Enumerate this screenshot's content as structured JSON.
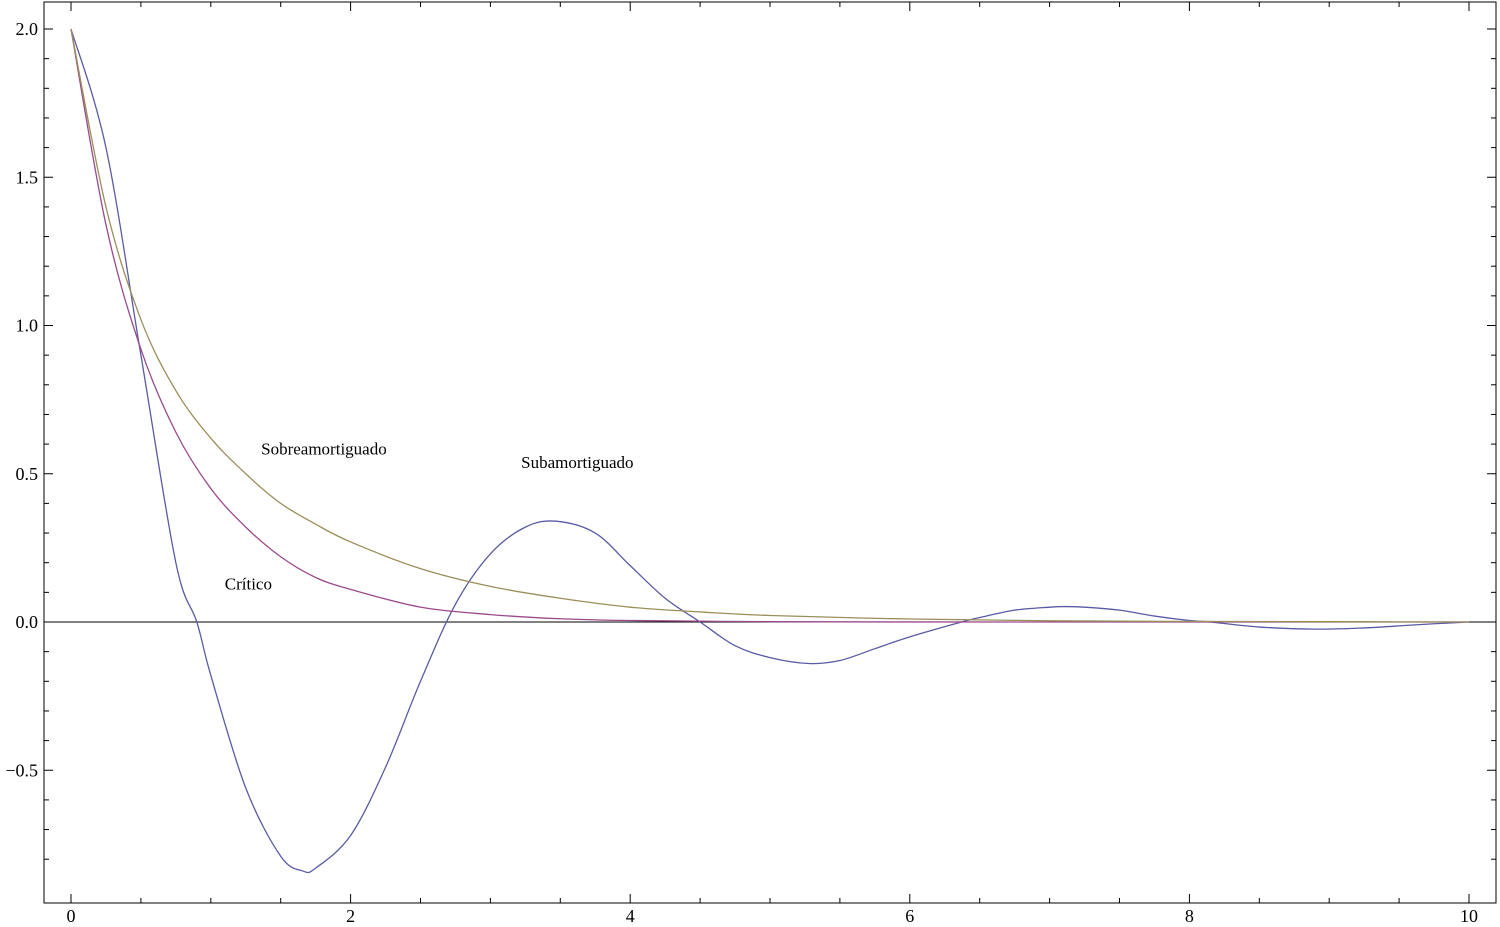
{
  "chart_data": {
    "type": "line",
    "title": "",
    "xlabel": "",
    "ylabel": "",
    "xlim": [
      0,
      10
    ],
    "ylim": [
      -0.9,
      2.1
    ],
    "grid": false,
    "x_ticks": [
      {
        "value": 0,
        "label": "0"
      },
      {
        "value": 2,
        "label": "2"
      },
      {
        "value": 4,
        "label": "4"
      },
      {
        "value": 6,
        "label": "6"
      },
      {
        "value": 8,
        "label": "8"
      },
      {
        "value": 10,
        "label": "10"
      }
    ],
    "y_ticks": [
      {
        "value": -0.5,
        "label": "−0.5"
      },
      {
        "value": 0.0,
        "label": "0.0"
      },
      {
        "value": 0.5,
        "label": "0.5"
      },
      {
        "value": 1.0,
        "label": "1.0"
      },
      {
        "value": 1.5,
        "label": "1.5"
      },
      {
        "value": 2.0,
        "label": "2.0"
      }
    ],
    "series": [
      {
        "color": "#5a5aa5",
        "x": [
          0,
          0.25,
          0.5,
          0.75,
          0.9,
          1.0,
          1.25,
          1.5,
          1.66,
          1.75,
          2.0,
          2.25,
          2.5,
          2.75,
          3.0,
          3.25,
          3.47,
          3.75,
          4.0,
          4.25,
          4.5,
          4.75,
          5.0,
          5.28,
          5.5,
          5.75,
          6.0,
          6.37,
          6.5,
          6.75,
          7.0,
          7.1,
          7.25,
          7.5,
          7.75,
          8.0,
          8.15,
          8.5,
          8.9,
          9.25,
          9.5,
          9.75,
          10.0
        ],
        "y": [
          2.0,
          1.6,
          0.9,
          0.2,
          0.0,
          -0.18,
          -0.56,
          -0.79,
          -0.84,
          -0.83,
          -0.72,
          -0.49,
          -0.2,
          0.06,
          0.23,
          0.32,
          0.34,
          0.3,
          0.19,
          0.08,
          0.0,
          -0.08,
          -0.12,
          -0.14,
          -0.13,
          -0.09,
          -0.05,
          0.0,
          0.015,
          0.04,
          0.05,
          0.052,
          0.05,
          0.04,
          0.02,
          0.005,
          0.0,
          -0.017,
          -0.024,
          -0.02,
          -0.013,
          -0.006,
          0.0
        ]
      },
      {
        "color": "#9a4a8a",
        "x": [
          0,
          0.25,
          0.5,
          0.75,
          1.0,
          1.25,
          1.5,
          1.75,
          2.0,
          2.5,
          3.0,
          3.5,
          4.0,
          5.0,
          6.0,
          7.0,
          8.0,
          9.0,
          10.0
        ],
        "y": [
          2.0,
          1.34,
          0.92,
          0.64,
          0.45,
          0.32,
          0.22,
          0.15,
          0.11,
          0.05,
          0.025,
          0.011,
          0.005,
          0.001,
          0.0002,
          0.0,
          0.0,
          0.0,
          0.0
        ]
      },
      {
        "color": "#9a8f5a",
        "x": [
          0,
          0.25,
          0.5,
          0.75,
          1.0,
          1.25,
          1.5,
          1.75,
          2.0,
          2.5,
          3.0,
          3.5,
          4.0,
          4.5,
          5.0,
          6.0,
          7.0,
          8.0,
          9.0,
          10.0
        ],
        "y": [
          2.0,
          1.4,
          1.02,
          0.78,
          0.62,
          0.5,
          0.4,
          0.33,
          0.27,
          0.18,
          0.12,
          0.08,
          0.05,
          0.034,
          0.022,
          0.01,
          0.004,
          0.002,
          0.001,
          0.0
        ]
      }
    ],
    "annotations": [
      {
        "text": "Sobreamortiguado",
        "x": 1.36,
        "y": 0.565
      },
      {
        "text": "Subamortiguado",
        "x": 3.22,
        "y": 0.52
      },
      {
        "text": "Crítico",
        "x": 1.1,
        "y": 0.11
      }
    ]
  }
}
